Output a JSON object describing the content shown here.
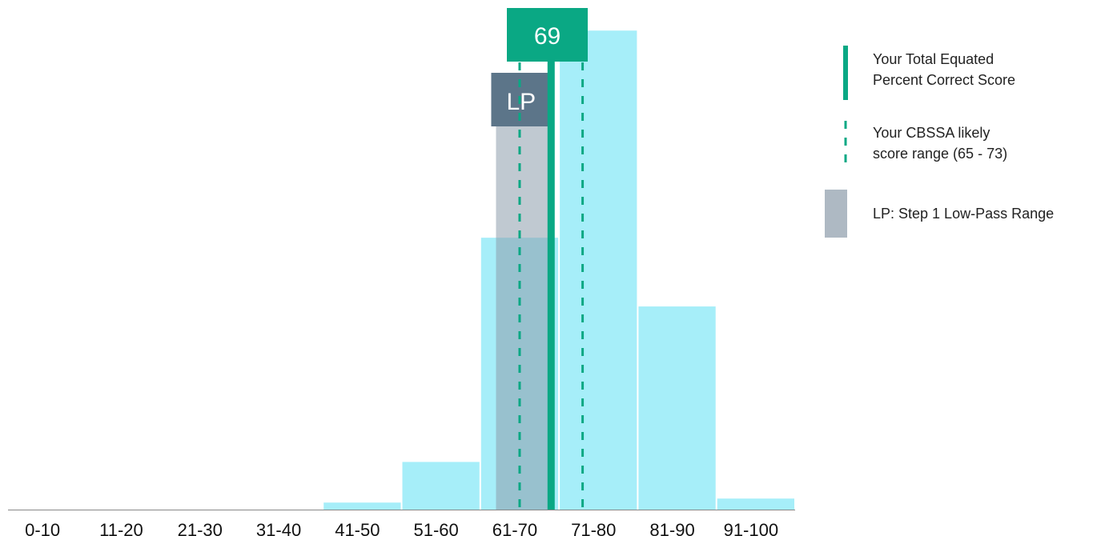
{
  "chart_data": {
    "type": "bar",
    "categories": [
      "0-10",
      "11-20",
      "21-30",
      "31-40",
      "41-50",
      "51-60",
      "61-70",
      "71-80",
      "81-90",
      "91-100"
    ],
    "values": [
      0,
      0,
      0,
      0,
      1.4,
      9.5,
      54.2,
      95.5,
      40.5,
      2.2
    ],
    "ylim": [
      0,
      100
    ],
    "xlabel": "",
    "ylabel": "",
    "score": 69,
    "score_label": "69",
    "likely_range": [
      65,
      73
    ],
    "low_pass_range": [
      62,
      69
    ],
    "low_pass_label": "LP",
    "colors": {
      "bar": "#a6eef9",
      "score": "#0aa884",
      "range": "#0aa884",
      "low_pass_band": "#8c9dac",
      "low_pass_tag": "#5c7589",
      "axis": "#888888"
    }
  },
  "legend": {
    "score_line": "Your Total Equated\nPercent Correct Score",
    "likely_range": "Your CBSSA likely\nscore range (65 - 73)",
    "low_pass": "LP: Step 1 Low-Pass Range"
  }
}
